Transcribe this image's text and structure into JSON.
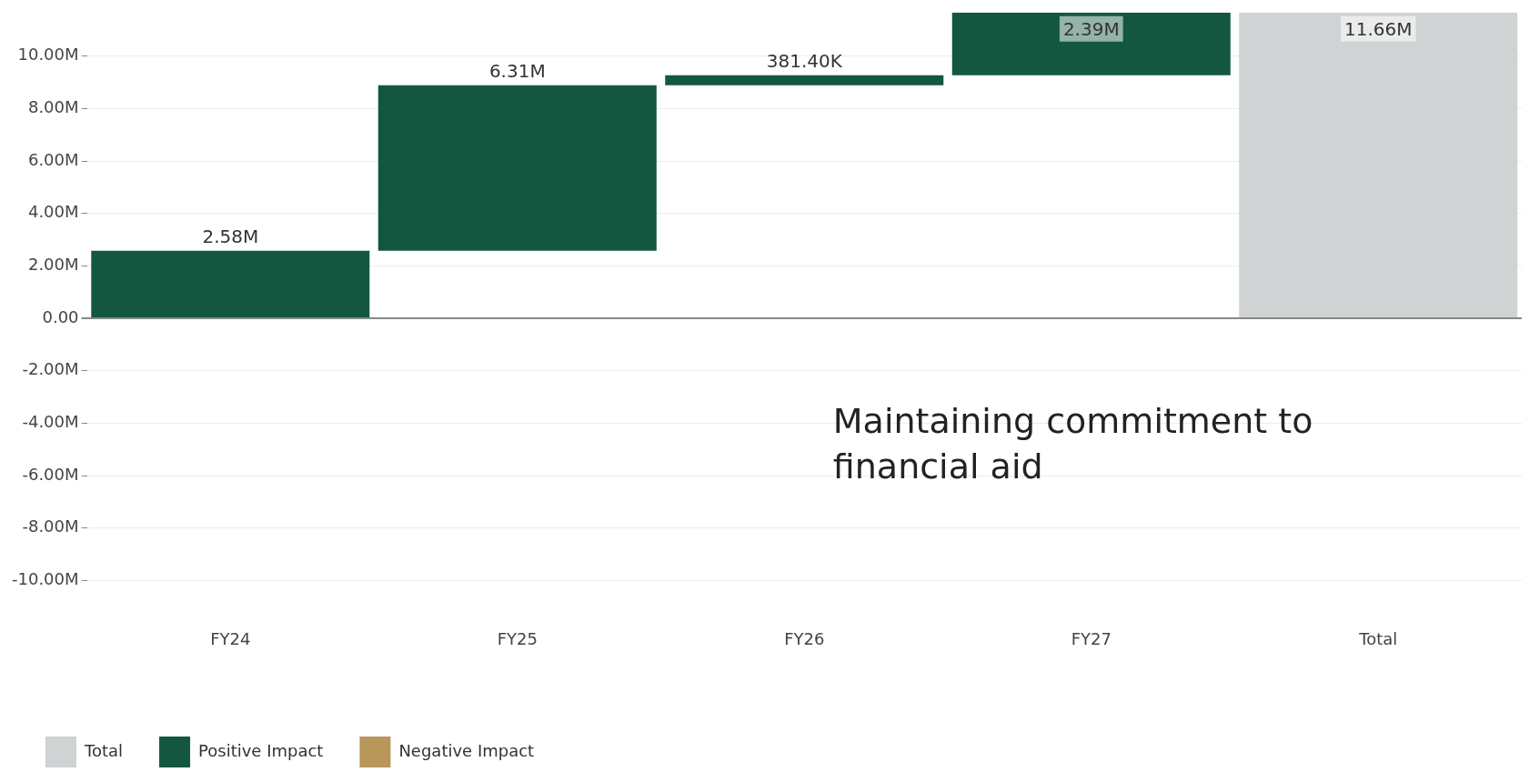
{
  "chart_data": {
    "type": "bar",
    "categories": [
      "FY24",
      "FY25",
      "FY26",
      "FY27",
      "Total"
    ],
    "series": [
      {
        "name": "Total",
        "color": "#d0d3d4",
        "values": [
          null,
          null,
          null,
          null,
          11660000
        ],
        "base": [
          null,
          null,
          null,
          null,
          0
        ],
        "value_labels": [
          null,
          null,
          null,
          null,
          "11.66M"
        ]
      },
      {
        "name": "Positive Impact",
        "color": "#135741",
        "values": [
          2580000,
          6310000,
          381400,
          2390000,
          null
        ],
        "base": [
          0,
          2580000,
          8890000,
          9271400,
          null
        ],
        "value_labels": [
          "2.58M",
          "6.31M",
          "381.40K",
          "2.39M",
          null
        ]
      },
      {
        "name": "Negative Impact",
        "color": "#b9975b",
        "values": [
          null,
          null,
          null,
          null,
          null
        ]
      }
    ],
    "ylim": [
      -10000000,
      11660000
    ],
    "yticks": [
      {
        "value": -10000000,
        "label": "-10.00M"
      },
      {
        "value": -8000000,
        "label": "-8.00M"
      },
      {
        "value": -6000000,
        "label": "-6.00M"
      },
      {
        "value": -4000000,
        "label": "-4.00M"
      },
      {
        "value": -2000000,
        "label": "-2.00M"
      },
      {
        "value": 0,
        "label": "0.00"
      },
      {
        "value": 2000000,
        "label": "2.00M"
      },
      {
        "value": 4000000,
        "label": "4.00M"
      },
      {
        "value": 6000000,
        "label": "6.00M"
      },
      {
        "value": 8000000,
        "label": "8.00M"
      },
      {
        "value": 10000000,
        "label": "10.00M"
      }
    ],
    "grid": "y",
    "legend": "bottom left",
    "annotations": [
      "Maintaining commitment to financial aid"
    ]
  }
}
